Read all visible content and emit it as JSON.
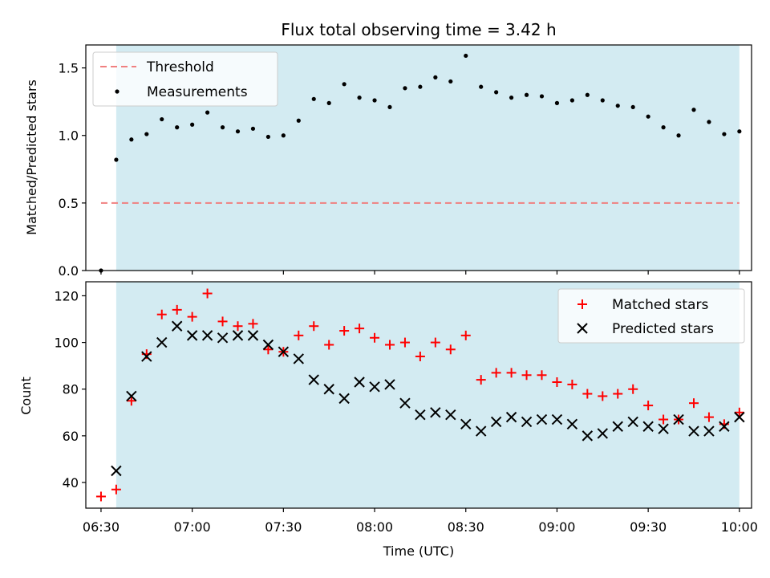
{
  "chart_data": [
    {
      "type": "scatter",
      "title": "Flux total observing time = 3.42 h",
      "xlabel": "",
      "ylabel": "Matched/Predicted stars",
      "ylim": [
        0,
        1.67
      ],
      "yticks": [
        0.0,
        0.5,
        1.0,
        1.5
      ],
      "ytick_labels": [
        "0.0",
        "0.5",
        "1.0",
        "1.5"
      ],
      "xlim": [
        "06:25",
        "10:04"
      ],
      "observing_window": [
        "06:35",
        "10:00"
      ],
      "threshold": {
        "name": "Threshold",
        "value": 0.5,
        "x_start": "06:30",
        "x_end": "10:00",
        "color": "#f08080"
      },
      "legend": {
        "placement": "top-left",
        "entries": [
          "Threshold",
          "Measurements"
        ]
      },
      "series": [
        {
          "name": "Measurements",
          "marker": "dot",
          "color": "#000000",
          "x": [
            "06:30",
            "06:35",
            "06:40",
            "06:45",
            "06:50",
            "06:55",
            "07:00",
            "07:05",
            "07:10",
            "07:15",
            "07:20",
            "07:25",
            "07:30",
            "07:35",
            "07:40",
            "07:45",
            "07:50",
            "07:55",
            "08:00",
            "08:05",
            "08:10",
            "08:15",
            "08:20",
            "08:25",
            "08:30",
            "08:35",
            "08:40",
            "08:45",
            "08:50",
            "08:55",
            "09:00",
            "09:05",
            "09:10",
            "09:15",
            "09:20",
            "09:25",
            "09:30",
            "09:35",
            "09:40",
            "09:45",
            "09:50",
            "09:55",
            "10:00"
          ],
          "y": [
            0.0,
            0.82,
            0.97,
            1.01,
            1.12,
            1.06,
            1.08,
            1.17,
            1.06,
            1.03,
            1.05,
            0.99,
            1.0,
            1.11,
            1.27,
            1.24,
            1.38,
            1.28,
            1.26,
            1.21,
            1.35,
            1.36,
            1.43,
            1.4,
            1.59,
            1.36,
            1.32,
            1.28,
            1.3,
            1.29,
            1.24,
            1.26,
            1.3,
            1.26,
            1.22,
            1.21,
            1.14,
            1.06,
            1.0,
            1.19,
            1.1,
            1.01,
            1.03
          ]
        }
      ]
    },
    {
      "type": "scatter",
      "title": "",
      "xlabel": "Time (UTC)",
      "ylabel": "Count",
      "ylim": [
        29,
        126
      ],
      "yticks": [
        40,
        60,
        80,
        100,
        120
      ],
      "ytick_labels": [
        "40",
        "60",
        "80",
        "100",
        "120"
      ],
      "xlim": [
        "06:25",
        "10:04"
      ],
      "xticks": [
        "06:30",
        "07:00",
        "07:30",
        "08:00",
        "08:30",
        "09:00",
        "09:30",
        "10:00"
      ],
      "xtick_labels": [
        "06:30",
        "07:00",
        "07:30",
        "08:00",
        "08:30",
        "09:00",
        "09:30",
        "10:00"
      ],
      "observing_window": [
        "06:35",
        "10:00"
      ],
      "legend": {
        "placement": "top-right",
        "entries": [
          "Matched stars",
          "Predicted stars"
        ]
      },
      "series": [
        {
          "name": "Matched stars",
          "marker": "plus",
          "color": "#ff0000",
          "x": [
            "06:30",
            "06:35",
            "06:40",
            "06:45",
            "06:50",
            "06:55",
            "07:00",
            "07:05",
            "07:10",
            "07:15",
            "07:20",
            "07:25",
            "07:30",
            "07:35",
            "07:40",
            "07:45",
            "07:50",
            "07:55",
            "08:00",
            "08:05",
            "08:10",
            "08:15",
            "08:20",
            "08:25",
            "08:30",
            "08:35",
            "08:40",
            "08:45",
            "08:50",
            "08:55",
            "09:00",
            "09:05",
            "09:10",
            "09:15",
            "09:20",
            "09:25",
            "09:30",
            "09:35",
            "09:40",
            "09:45",
            "09:50",
            "09:55",
            "10:00"
          ],
          "y": [
            34,
            37,
            75,
            95,
            112,
            114,
            111,
            121,
            109,
            107,
            108,
            97,
            96,
            103,
            107,
            99,
            105,
            106,
            102,
            99,
            100,
            94,
            100,
            97,
            103,
            84,
            87,
            87,
            86,
            86,
            83,
            82,
            78,
            77,
            78,
            80,
            73,
            67,
            67,
            74,
            68,
            65,
            70
          ]
        },
        {
          "name": "Predicted stars",
          "marker": "x",
          "color": "#000000",
          "x": [
            "06:35",
            "06:40",
            "06:45",
            "06:50",
            "06:55",
            "07:00",
            "07:05",
            "07:10",
            "07:15",
            "07:20",
            "07:25",
            "07:30",
            "07:35",
            "07:40",
            "07:45",
            "07:50",
            "07:55",
            "08:00",
            "08:05",
            "08:10",
            "08:15",
            "08:20",
            "08:25",
            "08:30",
            "08:35",
            "08:40",
            "08:45",
            "08:50",
            "08:55",
            "09:00",
            "09:05",
            "09:10",
            "09:15",
            "09:20",
            "09:25",
            "09:30",
            "09:35",
            "09:40",
            "09:45",
            "09:50",
            "09:55",
            "10:00"
          ],
          "y": [
            45,
            77,
            94,
            100,
            107,
            103,
            103,
            102,
            103,
            103,
            99,
            96,
            93,
            84,
            80,
            76,
            83,
            81,
            82,
            74,
            69,
            70,
            69,
            65,
            62,
            66,
            68,
            66,
            67,
            67,
            65,
            60,
            61,
            64,
            66,
            64,
            63,
            67,
            62,
            62,
            64,
            68
          ]
        }
      ]
    }
  ],
  "colors": {
    "shade": "#d3ebf2",
    "threshold": "#f08080",
    "matched": "#ff0000",
    "predicted": "#000000",
    "measurement": "#000000"
  }
}
